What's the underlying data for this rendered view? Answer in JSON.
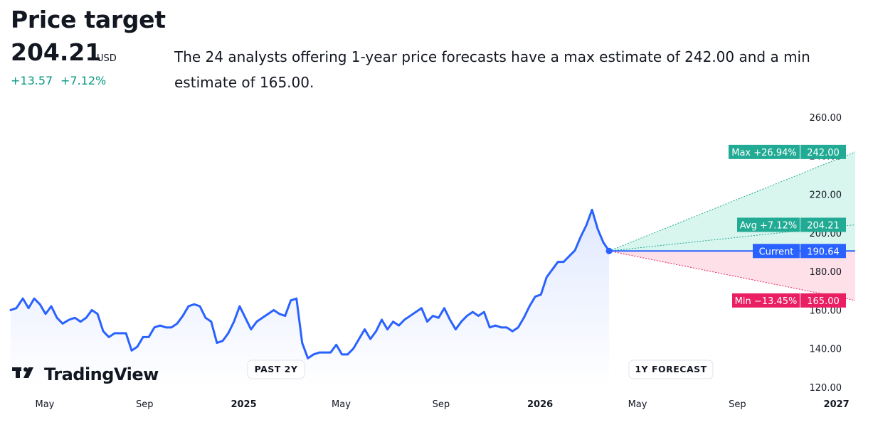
{
  "header": {
    "title": "Price target",
    "price": "204.21",
    "currency": "USD",
    "change_abs": "+13.57",
    "change_pct": "+7.12%",
    "description": "The 24 analysts offering 1-year price forecasts have a max estimate of 242.00 and a min estimate of 165.00."
  },
  "logo": {
    "text": "TradingView",
    "icon": "tradingview-logo-icon"
  },
  "labels": {
    "past": "PAST 2Y",
    "forecast": "1Y FORECAST",
    "max_label": "Max +26.94%",
    "max_value": "242.00",
    "avg_label": "Avg +7.12%",
    "avg_value": "204.21",
    "current_label": "Current",
    "current_value": "190.64",
    "min_label": "Min −13.45%",
    "min_value": "165.00"
  },
  "colors": {
    "line": "#2962ff",
    "max": "#22ab94",
    "avg": "#22ab94",
    "current": "#2962ff",
    "min": "#e91e63",
    "positive_text": "#089981"
  },
  "chart_data": {
    "type": "line",
    "title": "Price target",
    "ylim": [
      120,
      260
    ],
    "y_ticks": [
      "120.00",
      "140.00",
      "160.00",
      "180.00",
      "200.00",
      "220.00",
      "240.00",
      "260.00"
    ],
    "x_ticks": [
      {
        "label": "May",
        "x": "2024-05",
        "bold": false
      },
      {
        "label": "Sep",
        "x": "2024-09",
        "bold": false
      },
      {
        "label": "2025",
        "x": "2025-01",
        "bold": true
      },
      {
        "label": "May",
        "x": "2025-05",
        "bold": false
      },
      {
        "label": "Sep",
        "x": "2025-09",
        "bold": false
      },
      {
        "label": "2026",
        "x": "2026-01",
        "bold": true
      },
      {
        "label": "May",
        "x": "2026-05",
        "bold": false
      },
      {
        "label": "Sep",
        "x": "2026-09",
        "bold": false
      },
      {
        "label": "2027",
        "x": "2027-01",
        "bold": true
      }
    ],
    "x_range": [
      "2024-03-20",
      "2027-02-15"
    ],
    "series": [
      {
        "values": [
          [
            "2024-03-20",
            160
          ],
          [
            "2024-03-27",
            161
          ],
          [
            "2024-04-04",
            166
          ],
          [
            "2024-04-11",
            161
          ],
          [
            "2024-04-18",
            166
          ],
          [
            "2024-04-25",
            163
          ],
          [
            "2024-05-02",
            158
          ],
          [
            "2024-05-09",
            162
          ],
          [
            "2024-05-16",
            156
          ],
          [
            "2024-05-23",
            153
          ],
          [
            "2024-05-31",
            155
          ],
          [
            "2024-06-07",
            156
          ],
          [
            "2024-06-14",
            154
          ],
          [
            "2024-06-21",
            156
          ],
          [
            "2024-06-28",
            160
          ],
          [
            "2024-07-05",
            158
          ],
          [
            "2024-07-12",
            149
          ],
          [
            "2024-07-19",
            146
          ],
          [
            "2024-07-26",
            148
          ],
          [
            "2024-08-02",
            148
          ],
          [
            "2024-08-09",
            148
          ],
          [
            "2024-08-16",
            139
          ],
          [
            "2024-08-23",
            141
          ],
          [
            "2024-08-30",
            146
          ],
          [
            "2024-09-06",
            146
          ],
          [
            "2024-09-13",
            151
          ],
          [
            "2024-09-20",
            152
          ],
          [
            "2024-09-27",
            151
          ],
          [
            "2024-10-04",
            151
          ],
          [
            "2024-10-11",
            153
          ],
          [
            "2024-10-18",
            157
          ],
          [
            "2024-10-25",
            162
          ],
          [
            "2024-11-01",
            163
          ],
          [
            "2024-11-08",
            162
          ],
          [
            "2024-11-15",
            156
          ],
          [
            "2024-11-22",
            154
          ],
          [
            "2024-11-29",
            143
          ],
          [
            "2024-12-06",
            144
          ],
          [
            "2024-12-13",
            148
          ],
          [
            "2024-12-20",
            154
          ],
          [
            "2024-12-27",
            162
          ],
          [
            "2025-01-03",
            156
          ],
          [
            "2025-01-10",
            150
          ],
          [
            "2025-01-17",
            154
          ],
          [
            "2025-01-24",
            156
          ],
          [
            "2025-01-31",
            158
          ],
          [
            "2025-02-07",
            160
          ],
          [
            "2025-02-14",
            158
          ],
          [
            "2025-02-21",
            157
          ],
          [
            "2025-02-28",
            165
          ],
          [
            "2025-03-07",
            166
          ],
          [
            "2025-03-14",
            143
          ],
          [
            "2025-03-21",
            135
          ],
          [
            "2025-03-28",
            137
          ],
          [
            "2025-04-04",
            138
          ],
          [
            "2025-04-11",
            138
          ],
          [
            "2025-04-18",
            138
          ],
          [
            "2025-04-25",
            142
          ],
          [
            "2025-05-02",
            137
          ],
          [
            "2025-05-09",
            137
          ],
          [
            "2025-05-16",
            140
          ],
          [
            "2025-05-23",
            145
          ],
          [
            "2025-05-30",
            150
          ],
          [
            "2025-06-06",
            145
          ],
          [
            "2025-06-13",
            149
          ],
          [
            "2025-06-20",
            155
          ],
          [
            "2025-06-27",
            150
          ],
          [
            "2025-07-04",
            154
          ],
          [
            "2025-07-11",
            152
          ],
          [
            "2025-07-18",
            155
          ],
          [
            "2025-07-25",
            157
          ],
          [
            "2025-08-01",
            159
          ],
          [
            "2025-08-08",
            161
          ],
          [
            "2025-08-15",
            154
          ],
          [
            "2025-08-22",
            157
          ],
          [
            "2025-08-29",
            156
          ],
          [
            "2025-09-05",
            161
          ],
          [
            "2025-09-12",
            155
          ],
          [
            "2025-09-19",
            150
          ],
          [
            "2025-09-26",
            154
          ],
          [
            "2025-10-03",
            157
          ],
          [
            "2025-10-10",
            159
          ],
          [
            "2025-10-17",
            157
          ],
          [
            "2025-10-24",
            159
          ],
          [
            "2025-10-31",
            151
          ],
          [
            "2025-11-07",
            152
          ],
          [
            "2025-11-14",
            151
          ],
          [
            "2025-11-21",
            151
          ],
          [
            "2025-11-28",
            149
          ],
          [
            "2025-12-05",
            151
          ],
          [
            "2025-12-12",
            156
          ],
          [
            "2025-12-19",
            162
          ],
          [
            "2025-12-26",
            167
          ],
          [
            "2026-01-02",
            168
          ],
          [
            "2026-01-09",
            177
          ],
          [
            "2026-01-16",
            181
          ],
          [
            "2026-01-23",
            185
          ],
          [
            "2026-01-30",
            185
          ],
          [
            "2026-02-06",
            188
          ],
          [
            "2026-02-13",
            191
          ],
          [
            "2026-02-20",
            198
          ],
          [
            "2026-02-27",
            204
          ],
          [
            "2026-03-06",
            212
          ],
          [
            "2026-03-13",
            202
          ],
          [
            "2026-03-20",
            195
          ],
          [
            "2026-03-27",
            190.64
          ]
        ]
      }
    ],
    "forecast": {
      "start": {
        "x": "2026-03-27",
        "y": 190.64
      },
      "end_x": "2027-01-24",
      "max": 242.0,
      "avg": 204.21,
      "current": 190.64,
      "min": 165.0
    },
    "grid": false
  }
}
